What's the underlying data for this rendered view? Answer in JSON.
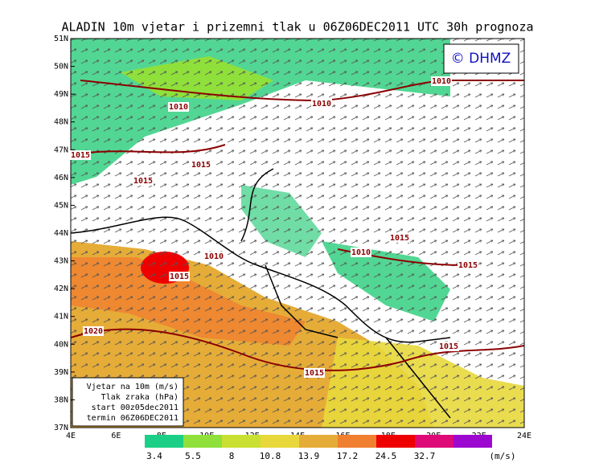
{
  "title": "ALADIN 10m vjetar i prizemni tlak u 06Z06DEC2011 UTC 30h prognoza",
  "credit": "© DHMZ",
  "lat_labels": [
    "51N",
    "50N",
    "49N",
    "48N",
    "47N",
    "46N",
    "45N",
    "44N",
    "43N",
    "42N",
    "41N",
    "40N",
    "39N",
    "38N",
    "37N"
  ],
  "lon_labels": [
    "4E",
    "6E",
    "8E",
    "10E",
    "12E",
    "14E",
    "16E",
    "18E",
    "20E",
    "22E",
    "24E"
  ],
  "isobar_labels": [
    "1010",
    "1010",
    "1010",
    "1015",
    "1015",
    "1015",
    "1015",
    "1010",
    "1010",
    "1015",
    "1015",
    "1020",
    "1015",
    "1015"
  ],
  "info_box": [
    "Vjetar na 10m (m/s)",
    "Tlak zraka (hPa)",
    "start 00z05dec2011",
    "termin 06Z06DEC2011"
  ],
  "colorbar": {
    "colors": [
      "#1ccf86",
      "#8fe03a",
      "#c9e033",
      "#e8d83c",
      "#e6ac38",
      "#f08030",
      "#ee0000",
      "#dd0a78",
      "#9d08d0"
    ],
    "labels": [
      "3.4",
      "5.5",
      "8",
      "10.8",
      "13.9",
      "17.2",
      "24.5",
      "32.7"
    ],
    "unit": "(m/s)"
  }
}
